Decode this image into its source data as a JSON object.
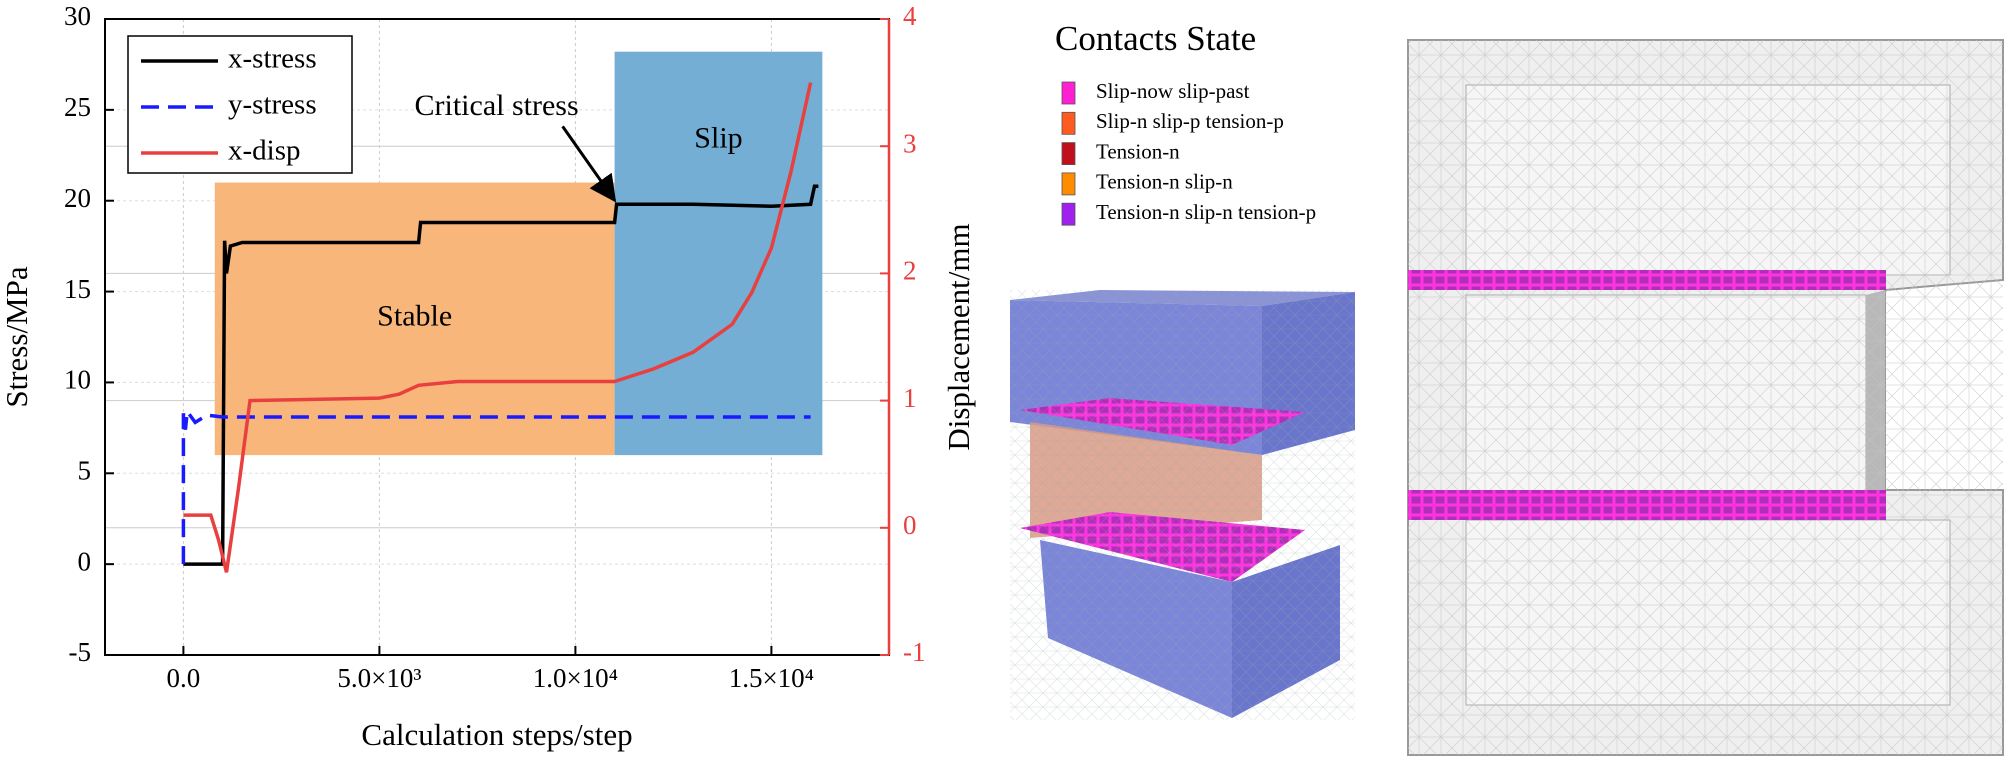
{
  "chart_data": {
    "type": "line",
    "xlabel": "Calculation steps/step",
    "ylabel": "Stress/MPa",
    "y2label": "Displacement/mm",
    "xlim": [
      -2000,
      18000
    ],
    "xticks": [
      {
        "value": 0,
        "label": "0.0"
      },
      {
        "value": 5000,
        "label": "5.0×10³"
      },
      {
        "value": 10000,
        "label": "1.0×10⁴"
      },
      {
        "value": 15000,
        "label": "1.5×10⁴"
      }
    ],
    "ylim": [
      -5,
      30
    ],
    "yticks": [
      -5,
      0,
      5,
      10,
      15,
      20,
      25,
      30
    ],
    "y2lim": [
      -1,
      4
    ],
    "y2ticks": [
      -1,
      0,
      1,
      2,
      3,
      4
    ],
    "y2color": "#e8403f",
    "grid": true,
    "legend": "upper left",
    "regions": [
      {
        "label": "Stable",
        "x": [
          800,
          11000
        ],
        "y": [
          6,
          21
        ],
        "color": "#f9b67a"
      },
      {
        "label": "Slip",
        "x": [
          11000,
          16300
        ],
        "y": [
          6,
          28.2
        ],
        "color": "#74aed5"
      }
    ],
    "annotations": [
      {
        "text": "Critical stress",
        "point": [
          11000,
          19.8
        ]
      }
    ],
    "series": [
      {
        "name": "x-stress",
        "color": "#000000",
        "style": "solid",
        "x": [
          0,
          900,
          1000,
          1050,
          1100,
          1200,
          1500,
          3000,
          6000,
          6050,
          8000,
          11000,
          11050,
          13000,
          15000,
          16000,
          16100,
          16200
        ],
        "values": [
          0,
          0,
          0,
          17.8,
          16,
          17.5,
          17.7,
          17.7,
          17.7,
          18.8,
          18.8,
          18.8,
          19.8,
          19.8,
          19.7,
          19.8,
          20.8,
          20.8
        ]
      },
      {
        "name": "y-stress",
        "color": "#1a1aff",
        "style": "dashed",
        "x": [
          0,
          0,
          50,
          100,
          300,
          600,
          1000,
          5000,
          10000,
          16000
        ],
        "values": [
          0,
          8.3,
          7.4,
          8.4,
          7.8,
          8.2,
          8.1,
          8.1,
          8.1,
          8.1
        ]
      },
      {
        "name": "x-disp",
        "color": "#e8403f",
        "style": "solid",
        "axis": "y2",
        "x": [
          0,
          700,
          900,
          1100,
          1400,
          1700,
          5000,
          5500,
          6000,
          7000,
          11000,
          12000,
          13000,
          14000,
          14500,
          15000,
          15500,
          16000
        ],
        "values": [
          0.1,
          0.1,
          -0.1,
          -0.35,
          0.3,
          1.0,
          1.02,
          1.05,
          1.12,
          1.15,
          1.15,
          1.25,
          1.38,
          1.6,
          1.85,
          2.2,
          2.8,
          3.5
        ]
      }
    ]
  },
  "contacts_legend": {
    "title": "Contacts State",
    "items": [
      {
        "label": "Slip-now slip-past",
        "color": "#ff1fd2"
      },
      {
        "label": "Slip-n slip-p tension-p",
        "color": "#ff5a1f"
      },
      {
        "label": "Tension-n",
        "color": "#c0101c"
      },
      {
        "label": "Tension-n slip-n",
        "color": "#ff8c00"
      },
      {
        "label": "Tension-n slip-n tension-p",
        "color": "#a020f0"
      }
    ]
  }
}
